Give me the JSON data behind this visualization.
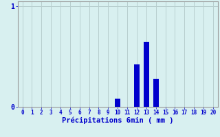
{
  "categories": [
    0,
    1,
    2,
    3,
    4,
    5,
    6,
    7,
    8,
    9,
    10,
    11,
    12,
    13,
    14,
    15,
    16,
    17,
    18,
    19,
    20
  ],
  "values": [
    0,
    0,
    0,
    0,
    0,
    0,
    0,
    0,
    0,
    0,
    0.08,
    0,
    0.42,
    0.65,
    0.28,
    0,
    0,
    0,
    0,
    0,
    0
  ],
  "bar_color": "#0000cc",
  "background_color": "#d8f0f0",
  "grid_color": "#b8cece",
  "axis_color": "#999999",
  "xlabel": "Précipitations 6min ( mm )",
  "xlabel_color": "#0000cc",
  "ylabel_ticks": [
    0,
    1
  ],
  "ylim": [
    0,
    1.05
  ],
  "xlim": [
    -0.5,
    20.5
  ],
  "tick_color": "#0000cc",
  "bar_width": 0.6,
  "figsize": [
    3.2,
    2.0
  ],
  "dpi": 100
}
